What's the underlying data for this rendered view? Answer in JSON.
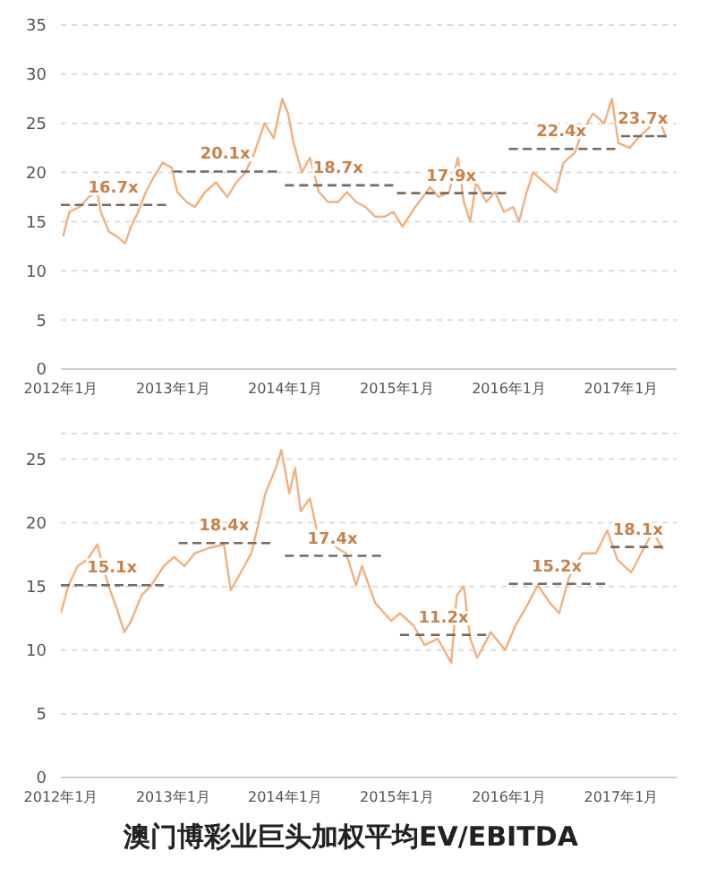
{
  "chart_data": [
    {
      "type": "line",
      "xlim": [
        "2012-01-01",
        "2017-07-01"
      ],
      "xticks": [
        {
          "value": "2012-01-01",
          "label": "2012年1月"
        },
        {
          "value": "2013-01-01",
          "label": "2013年1月"
        },
        {
          "value": "2014-01-01",
          "label": "2014年1月"
        },
        {
          "value": "2015-01-01",
          "label": "2015年1月"
        },
        {
          "value": "2016-01-01",
          "label": "2016年1月"
        },
        {
          "value": "2017-01-01",
          "label": "2017年1月"
        }
      ],
      "ylim": [
        0,
        35
      ],
      "yticks": [
        0,
        5,
        10,
        15,
        20,
        25,
        30,
        35
      ],
      "grid": "y",
      "marker": "none",
      "series": [
        {
          "color": "#f2b07e",
          "line_style": "solid",
          "x": [
            "2012-01-08",
            "2012-01-29",
            "2012-03-02",
            "2012-04-01",
            "2012-04-29",
            "2012-05-10",
            "2012-06-05",
            "2012-07-01",
            "2012-07-29",
            "2012-08-17",
            "2012-09-09",
            "2012-10-04",
            "2012-10-29",
            "2012-11-28",
            "2012-12-27",
            "2013-01-15",
            "2013-02-14",
            "2013-03-13",
            "2013-04-15",
            "2013-05-21",
            "2013-06-27",
            "2013-07-26",
            "2013-08-25",
            "2013-09-23",
            "2013-10-26",
            "2013-11-25",
            "2013-12-23",
            "2014-01-11",
            "2014-01-29",
            "2014-02-25",
            "2014-03-23",
            "2014-04-22",
            "2014-05-21",
            "2014-06-23",
            "2014-07-22",
            "2014-08-21",
            "2014-09-20",
            "2014-10-22",
            "2014-11-21",
            "2014-12-20",
            "2015-01-19",
            "2015-03-02",
            "2015-04-19",
            "2015-05-17",
            "2015-06-20",
            "2015-07-19",
            "2015-08-07",
            "2015-08-28",
            "2015-09-16",
            "2015-10-19",
            "2015-11-17",
            "2015-12-16",
            "2016-01-15",
            "2016-02-03",
            "2016-02-28",
            "2016-03-20",
            "2016-04-26",
            "2016-06-02",
            "2016-06-27",
            "2016-08-03",
            "2016-08-25",
            "2016-10-01",
            "2016-11-07",
            "2016-12-02",
            "2016-12-23",
            "2017-01-29",
            "2017-02-25",
            "2017-04-01",
            "2017-04-29",
            "2017-05-28"
          ],
          "values": [
            13.5,
            16,
            16.5,
            17.5,
            18,
            16,
            14,
            13.5,
            12.8,
            14.5,
            16,
            18,
            19.5,
            21,
            20.5,
            18,
            17,
            16.5,
            18,
            19,
            17.5,
            19,
            20,
            22,
            25,
            23.5,
            27.5,
            26,
            23,
            20,
            21.5,
            18,
            17,
            17,
            18,
            17,
            16.5,
            15.5,
            15.5,
            16,
            14.5,
            16.5,
            18.5,
            17.5,
            18,
            21.5,
            17,
            15,
            19,
            17,
            18,
            16,
            16.5,
            15,
            18,
            20,
            19,
            18,
            21,
            22,
            24,
            26,
            25,
            27.5,
            23,
            22.5,
            23.5,
            24.5,
            26,
            23.5
          ]
        },
        {
          "color": "#7a6a5c",
          "line_style": "dashed",
          "x": [
            "2012-01-01",
            "2012-12-09"
          ],
          "values": [
            16.7,
            16.7
          ]
        },
        {
          "color": "#7a6a5c",
          "line_style": "dashed",
          "x": [
            "2013-01-01",
            "2013-12-05"
          ],
          "values": [
            20.1,
            20.1
          ]
        },
        {
          "color": "#7a6a5c",
          "line_style": "dashed",
          "x": [
            "2014-01-01",
            "2014-12-20"
          ],
          "values": [
            18.7,
            18.7
          ]
        },
        {
          "color": "#7a6a5c",
          "line_style": "dashed",
          "x": [
            "2015-01-01",
            "2015-12-23"
          ],
          "values": [
            17.9,
            17.9
          ]
        },
        {
          "color": "#7a6a5c",
          "line_style": "dashed",
          "x": [
            "2016-01-01",
            "2016-12-13"
          ],
          "values": [
            22.4,
            22.4
          ]
        },
        {
          "color": "#7a6a5c",
          "line_style": "dashed",
          "x": [
            "2017-01-01",
            "2017-05-28"
          ],
          "values": [
            23.7,
            23.7
          ]
        }
      ],
      "annotations": [
        {
          "text": "16.7x",
          "x": "2012-06-20",
          "y": 16.7
        },
        {
          "text": "20.1x",
          "x": "2013-06-20",
          "y": 20.1
        },
        {
          "text": "18.7x",
          "x": "2014-06-23",
          "y": 18.7
        },
        {
          "text": "17.9x",
          "x": "2015-06-27",
          "y": 17.9
        },
        {
          "text": "22.4x",
          "x": "2016-06-20",
          "y": 22.4
        },
        {
          "text": "23.7x",
          "x": "2017-03-13",
          "y": 23.7
        }
      ]
    },
    {
      "type": "line",
      "title": "澳门博彩业巨头加权平均EV/EBITDA",
      "xlim": [
        "2012-01-01",
        "2017-07-01"
      ],
      "xticks": [
        {
          "value": "2012-01-01",
          "label": "2012年1月"
        },
        {
          "value": "2013-01-01",
          "label": "2013年1月"
        },
        {
          "value": "2014-01-01",
          "label": "2014年1月"
        },
        {
          "value": "2015-01-01",
          "label": "2015年1月"
        },
        {
          "value": "2016-01-01",
          "label": "2016年1月"
        },
        {
          "value": "2017-01-01",
          "label": "2017年1月"
        }
      ],
      "ylim": [
        0,
        27
      ],
      "yticks": [
        0,
        5,
        10,
        15,
        20,
        25
      ],
      "grid": "y",
      "marker": "none",
      "series": [
        {
          "color": "#f2b07e",
          "line_style": "solid",
          "x": [
            "2012-01-01",
            "2012-01-26",
            "2012-02-25",
            "2012-03-27",
            "2012-04-29",
            "2012-05-17",
            "2012-06-05",
            "2012-07-01",
            "2012-07-26",
            "2012-08-17",
            "2012-09-20",
            "2012-10-19",
            "2012-12-02",
            "2013-01-04",
            "2013-02-07",
            "2013-03-13",
            "2013-04-26",
            "2013-06-16",
            "2013-07-08",
            "2013-08-10",
            "2013-09-13",
            "2013-10-11",
            "2013-10-29",
            "2013-12-02",
            "2013-12-20",
            "2014-01-15",
            "2014-02-03",
            "2014-02-21",
            "2014-03-23",
            "2014-04-15",
            "2014-05-17",
            "2014-06-20",
            "2014-07-19",
            "2014-08-21",
            "2014-09-09",
            "2014-10-22",
            "2014-12-13",
            "2015-01-11",
            "2015-02-25",
            "2015-04-01",
            "2015-05-14",
            "2015-06-27",
            "2015-07-15",
            "2015-08-07",
            "2015-08-28",
            "2015-09-20",
            "2015-11-03",
            "2015-12-20",
            "2016-01-22",
            "2016-03-05",
            "2016-04-04",
            "2016-05-14",
            "2016-06-13",
            "2016-07-15",
            "2016-08-28",
            "2016-10-11",
            "2016-11-17",
            "2016-12-20",
            "2017-02-03",
            "2017-03-16",
            "2017-04-15",
            "2017-05-17"
          ],
          "values": [
            12.9,
            15.1,
            16.6,
            17.1,
            18.3,
            16.6,
            15,
            13.3,
            11.4,
            12.3,
            14.3,
            15,
            16.6,
            17.3,
            16.6,
            17.6,
            18,
            18.3,
            14.7,
            16.1,
            17.6,
            20.4,
            22.3,
            24.3,
            25.7,
            22.3,
            24.3,
            20.9,
            21.9,
            19.4,
            19,
            18,
            17.6,
            15.1,
            16.6,
            13.7,
            12.3,
            12.9,
            11.9,
            10.4,
            10.9,
            9,
            14.3,
            15,
            10.9,
            9.4,
            11.4,
            10,
            11.9,
            13.7,
            15.1,
            13.7,
            12.9,
            15.7,
            17.6,
            17.6,
            19.4,
            17.1,
            16.1,
            18,
            19.3,
            17.9
          ]
        },
        {
          "color": "#7a6a5c",
          "line_style": "dashed",
          "x": [
            "2012-01-01",
            "2012-12-02"
          ],
          "values": [
            15.1,
            15.1
          ]
        },
        {
          "color": "#7a6a5c",
          "line_style": "dashed",
          "x": [
            "2013-01-19",
            "2013-11-14"
          ],
          "values": [
            18.4,
            18.4
          ]
        },
        {
          "color": "#7a6a5c",
          "line_style": "dashed",
          "x": [
            "2014-01-01",
            "2014-11-10"
          ],
          "values": [
            17.4,
            17.4
          ]
        },
        {
          "color": "#7a6a5c",
          "line_style": "dashed",
          "x": [
            "2015-01-11",
            "2015-10-19"
          ],
          "values": [
            11.2,
            11.2
          ]
        },
        {
          "color": "#7a6a5c",
          "line_style": "dashed",
          "x": [
            "2016-01-01",
            "2016-11-10"
          ],
          "values": [
            15.2,
            15.2
          ]
        },
        {
          "color": "#7a6a5c",
          "line_style": "dashed",
          "x": [
            "2016-11-28",
            "2017-05-17"
          ],
          "values": [
            18.1,
            18.1
          ]
        }
      ],
      "annotations": [
        {
          "text": "15.1x",
          "x": "2012-06-16",
          "y": 15.1
        },
        {
          "text": "18.4x",
          "x": "2013-06-16",
          "y": 18.4
        },
        {
          "text": "17.4x",
          "x": "2014-06-05",
          "y": 17.4
        },
        {
          "text": "11.2x",
          "x": "2015-06-02",
          "y": 11.2
        },
        {
          "text": "15.2x",
          "x": "2016-06-05",
          "y": 15.2
        },
        {
          "text": "18.1x",
          "x": "2017-02-25",
          "y": 18.1
        }
      ]
    }
  ]
}
